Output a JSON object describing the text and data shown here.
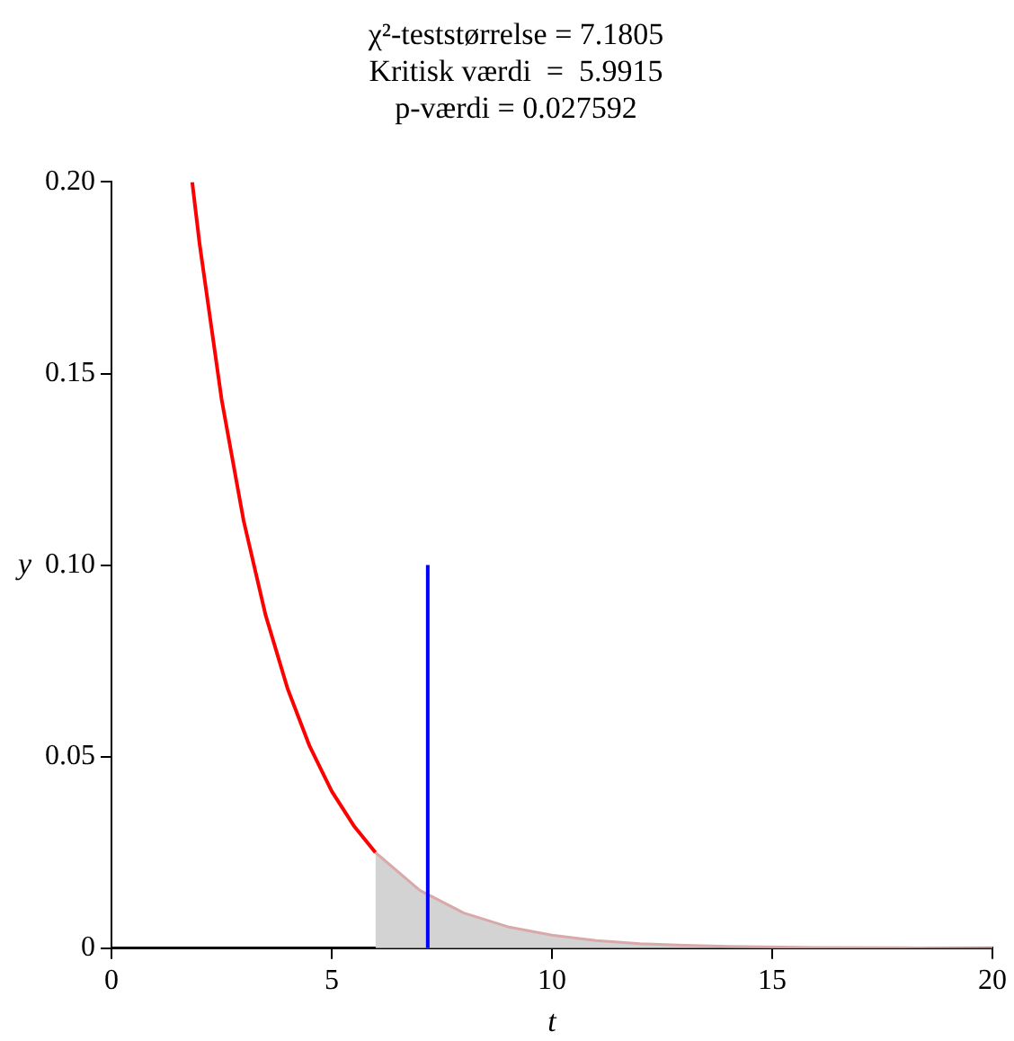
{
  "chart_data": {
    "type": "line",
    "title": "χ²-teststørrelse = 7.1805\nKritisk værdi  =  5.9915\np-værdi = 0.027592",
    "xlabel": "t",
    "ylabel": "y",
    "series": [
      {
        "type": "line",
        "color": "#ff0000",
        "x": [
          1.833,
          2,
          2.5,
          3,
          3.5,
          4,
          4.5,
          5,
          5.5,
          5.9915
        ],
        "values": [
          0.2,
          0.1839,
          0.1433,
          0.1116,
          0.0869,
          0.0677,
          0.0527,
          0.041,
          0.032,
          0.025
        ]
      },
      {
        "type": "area",
        "color": "#d3d3d3",
        "x": [
          5.9915,
          7,
          8,
          9,
          10,
          11,
          12,
          13,
          14,
          16,
          18,
          20
        ],
        "values": [
          0.025,
          0.0151,
          0.0092,
          0.0056,
          0.0034,
          0.002,
          0.0012,
          0.0008,
          0.0005,
          0.0002,
          0.0001,
          0
        ]
      },
      {
        "type": "line",
        "color": "#0000ff",
        "x": [
          7.1805,
          7.1805
        ],
        "values": [
          0,
          0.1
        ]
      }
    ],
    "xlim": [
      0,
      20
    ],
    "xticks": [
      0,
      5,
      10,
      15,
      20
    ],
    "ylim": [
      0,
      0.2
    ],
    "yticks": [
      0,
      {
        "value": 0.05,
        "label": "0.05"
      },
      {
        "value": 0.1,
        "label": "0.10"
      },
      {
        "value": 0.15,
        "label": "0.15"
      },
      {
        "value": 0.2,
        "label": "0.20"
      }
    ],
    "grid": false,
    "legend": false,
    "marker": "none",
    "line_style": "solid"
  }
}
